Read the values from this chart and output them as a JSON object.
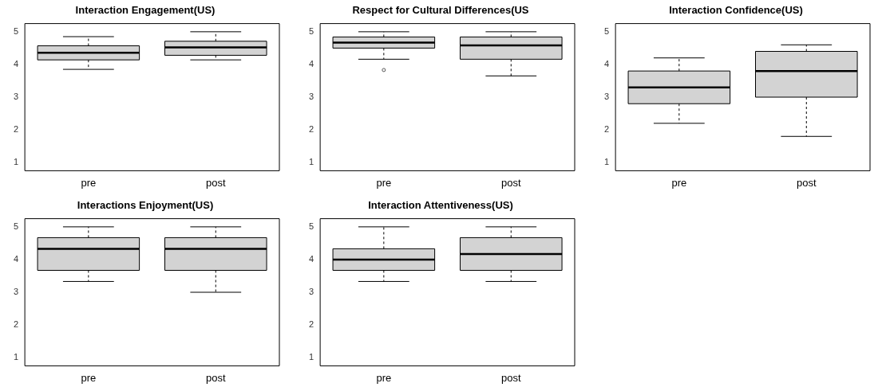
{
  "chart_data": [
    {
      "type": "box",
      "title": "Interaction Engagement(US)",
      "categories": [
        "pre",
        "post"
      ],
      "ylim": [
        0.75,
        5.25
      ],
      "yticks": [
        1,
        2,
        3,
        4,
        5
      ],
      "series": [
        {
          "color": "#d3d3d3",
          "boxes": [
            {
              "low": 3.85,
              "q1": 4.14,
              "median": 4.36,
              "q3": 4.57,
              "high": 4.85
            },
            {
              "low": 4.14,
              "q1": 4.28,
              "median": 4.52,
              "q3": 4.71,
              "high": 5
            }
          ]
        }
      ]
    },
    {
      "type": "box",
      "title": "Respect for Cultural Differences(US",
      "categories": [
        "pre",
        "post"
      ],
      "ylim": [
        0.75,
        5.25
      ],
      "yticks": [
        1,
        2,
        3,
        4,
        5
      ],
      "series": [
        {
          "color": "#d3d3d3",
          "boxes": [
            {
              "low": 4.16,
              "q1": 4.5,
              "median": 4.67,
              "q3": 4.84,
              "high": 5,
              "outliers": [
                3.83
              ]
            },
            {
              "low": 3.65,
              "q1": 4.16,
              "median": 4.58,
              "q3": 4.84,
              "high": 5
            }
          ]
        }
      ]
    },
    {
      "type": "box",
      "title": "Interaction Confidence(US)",
      "categories": [
        "pre",
        "post"
      ],
      "ylim": [
        0.75,
        5.25
      ],
      "yticks": [
        1,
        2,
        3,
        4,
        5
      ],
      "series": [
        {
          "color": "#d3d3d3",
          "boxes": [
            {
              "low": 2.2,
              "q1": 2.8,
              "median": 3.3,
              "q3": 3.8,
              "high": 4.2
            },
            {
              "low": 1.8,
              "q1": 3.0,
              "median": 3.8,
              "q3": 4.4,
              "high": 4.6
            }
          ]
        }
      ]
    },
    {
      "type": "box",
      "title": "Interactions Enjoyment(US)",
      "categories": [
        "pre",
        "post"
      ],
      "ylim": [
        0.75,
        5.25
      ],
      "yticks": [
        1,
        2,
        3,
        4,
        5
      ],
      "series": [
        {
          "color": "#d3d3d3",
          "boxes": [
            {
              "low": 3.33,
              "q1": 3.67,
              "median": 4.33,
              "q3": 4.67,
              "high": 5
            },
            {
              "low": 3.0,
              "q1": 3.67,
              "median": 4.33,
              "q3": 4.67,
              "high": 5
            }
          ]
        }
      ]
    },
    {
      "type": "box",
      "title": "Interaction Attentiveness(US)",
      "categories": [
        "pre",
        "post"
      ],
      "ylim": [
        0.75,
        5.25
      ],
      "yticks": [
        1,
        2,
        3,
        4,
        5
      ],
      "series": [
        {
          "color": "#d3d3d3",
          "boxes": [
            {
              "low": 3.33,
              "q1": 3.67,
              "median": 4.0,
              "q3": 4.33,
              "high": 5
            },
            {
              "low": 3.33,
              "q1": 3.67,
              "median": 4.17,
              "q3": 4.67,
              "high": 5
            }
          ]
        }
      ]
    }
  ]
}
